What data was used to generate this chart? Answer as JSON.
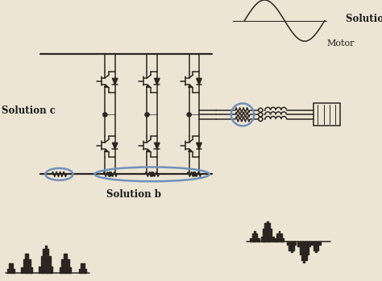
{
  "background_color": "#ede5d4",
  "line_color": "#2a2520",
  "ellipse_color": "#7090bb",
  "text_color": "#1a1a1a",
  "solution_a_label": "Solution a",
  "solution_b_label": "Solution b",
  "solution_c_label": "Solution c",
  "motor_label": "Motor",
  "fig_width": 4.74,
  "fig_height": 3.49,
  "dpi": 100
}
